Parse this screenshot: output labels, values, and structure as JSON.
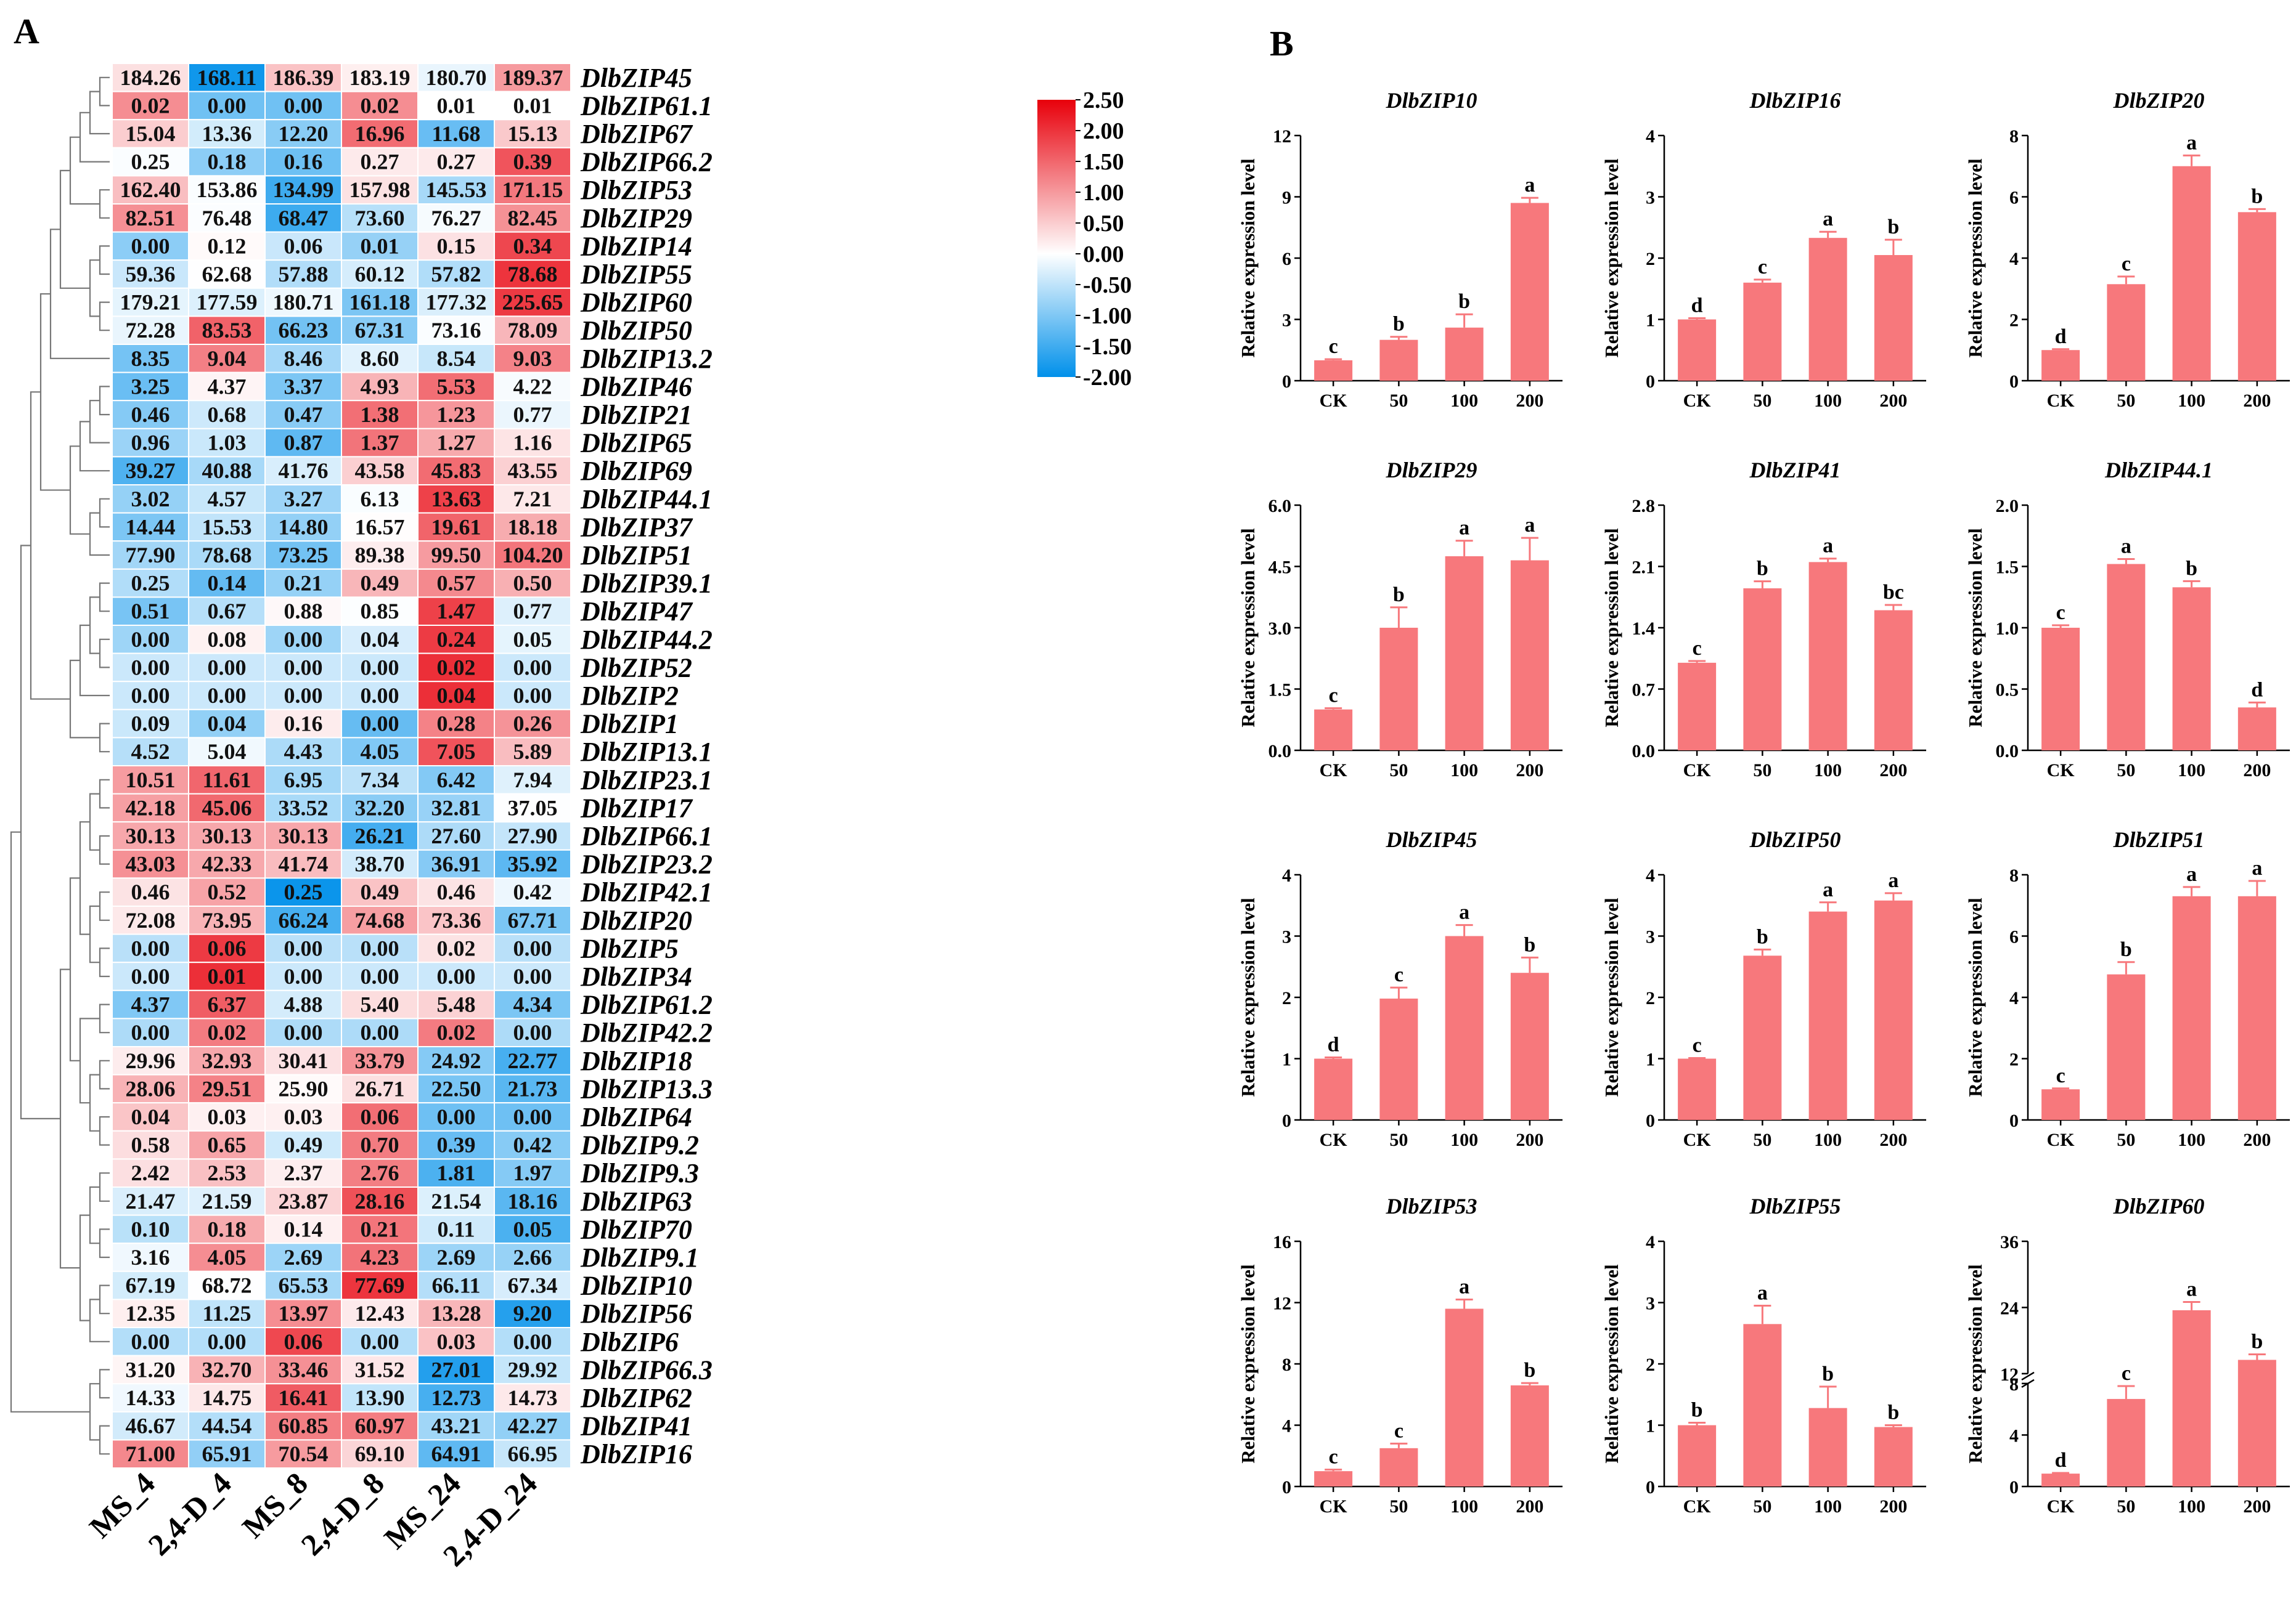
{
  "panel_a": {
    "label": "A",
    "columns": [
      "MS_4",
      "2,4-D_4",
      "MS_8",
      "2,4-D_8",
      "MS_24",
      "2,4-D_24"
    ],
    "colorbar": {
      "ticks": [
        "2.50",
        "2.00",
        "1.50",
        "1.00",
        "0.50",
        "0.00",
        "-0.50",
        "-1.00",
        "-1.50",
        "-2.00"
      ],
      "min": -2.0,
      "max": 2.5,
      "high_color": "#e8000b",
      "mid_color": "#ffffff",
      "low_color": "#0090ea"
    },
    "rows": [
      {
        "gene": "DlbZIP45",
        "values": [
          "184.26",
          "168.11",
          "186.39",
          "183.19",
          "180.70",
          "189.37"
        ]
      },
      {
        "gene": "DlbZIP61.1",
        "values": [
          "0.02",
          "0.00",
          "0.00",
          "0.02",
          "0.01",
          "0.01"
        ]
      },
      {
        "gene": "DlbZIP67",
        "values": [
          "15.04",
          "13.36",
          "12.20",
          "16.96",
          "11.68",
          "15.13"
        ]
      },
      {
        "gene": "DlbZIP66.2",
        "values": [
          "0.25",
          "0.18",
          "0.16",
          "0.27",
          "0.27",
          "0.39"
        ]
      },
      {
        "gene": "DlbZIP53",
        "values": [
          "162.40",
          "153.86",
          "134.99",
          "157.98",
          "145.53",
          "171.15"
        ]
      },
      {
        "gene": "DlbZIP29",
        "values": [
          "82.51",
          "76.48",
          "68.47",
          "73.60",
          "76.27",
          "82.45"
        ]
      },
      {
        "gene": "DlbZIP14",
        "values": [
          "0.00",
          "0.12",
          "0.06",
          "0.01",
          "0.15",
          "0.34"
        ]
      },
      {
        "gene": "DlbZIP55",
        "values": [
          "59.36",
          "62.68",
          "57.88",
          "60.12",
          "57.82",
          "78.68"
        ]
      },
      {
        "gene": "DlbZIP60",
        "values": [
          "179.21",
          "177.59",
          "180.71",
          "161.18",
          "177.32",
          "225.65"
        ]
      },
      {
        "gene": "DlbZIP50",
        "values": [
          "72.28",
          "83.53",
          "66.23",
          "67.31",
          "73.16",
          "78.09"
        ]
      },
      {
        "gene": "DlbZIP13.2",
        "values": [
          "8.35",
          "9.04",
          "8.46",
          "8.60",
          "8.54",
          "9.03"
        ]
      },
      {
        "gene": "DlbZIP46",
        "values": [
          "3.25",
          "4.37",
          "3.37",
          "4.93",
          "5.53",
          "4.22"
        ]
      },
      {
        "gene": "DlbZIP21",
        "values": [
          "0.46",
          "0.68",
          "0.47",
          "1.38",
          "1.23",
          "0.77"
        ]
      },
      {
        "gene": "DlbZIP65",
        "values": [
          "0.96",
          "1.03",
          "0.87",
          "1.37",
          "1.27",
          "1.16"
        ]
      },
      {
        "gene": "DlbZIP69",
        "values": [
          "39.27",
          "40.88",
          "41.76",
          "43.58",
          "45.83",
          "43.55"
        ]
      },
      {
        "gene": "DlbZIP44.1",
        "values": [
          "3.02",
          "4.57",
          "3.27",
          "6.13",
          "13.63",
          "7.21"
        ]
      },
      {
        "gene": "DlbZIP37",
        "values": [
          "14.44",
          "15.53",
          "14.80",
          "16.57",
          "19.61",
          "18.18"
        ]
      },
      {
        "gene": "DlbZIP51",
        "values": [
          "77.90",
          "78.68",
          "73.25",
          "89.38",
          "99.50",
          "104.20"
        ]
      },
      {
        "gene": "DlbZIP39.1",
        "values": [
          "0.25",
          "0.14",
          "0.21",
          "0.49",
          "0.57",
          "0.50"
        ]
      },
      {
        "gene": "DlbZIP47",
        "values": [
          "0.51",
          "0.67",
          "0.88",
          "0.85",
          "1.47",
          "0.77"
        ]
      },
      {
        "gene": "DlbZIP44.2",
        "values": [
          "0.00",
          "0.08",
          "0.00",
          "0.04",
          "0.24",
          "0.05"
        ]
      },
      {
        "gene": "DlbZIP52",
        "values": [
          "0.00",
          "0.00",
          "0.00",
          "0.00",
          "0.02",
          "0.00"
        ]
      },
      {
        "gene": "DlbZIP2",
        "values": [
          "0.00",
          "0.00",
          "0.00",
          "0.00",
          "0.04",
          "0.00"
        ]
      },
      {
        "gene": "DlbZIP1",
        "values": [
          "0.09",
          "0.04",
          "0.16",
          "0.00",
          "0.28",
          "0.26"
        ]
      },
      {
        "gene": "DlbZIP13.1",
        "values": [
          "4.52",
          "5.04",
          "4.43",
          "4.05",
          "7.05",
          "5.89"
        ]
      },
      {
        "gene": "DlbZIP23.1",
        "values": [
          "10.51",
          "11.61",
          "6.95",
          "7.34",
          "6.42",
          "7.94"
        ]
      },
      {
        "gene": "DlbZIP17",
        "values": [
          "42.18",
          "45.06",
          "33.52",
          "32.20",
          "32.81",
          "37.05"
        ]
      },
      {
        "gene": "DlbZIP66.1",
        "values": [
          "30.13",
          "30.13",
          "30.13",
          "26.21",
          "27.60",
          "27.90"
        ]
      },
      {
        "gene": "DlbZIP23.2",
        "values": [
          "43.03",
          "42.33",
          "41.74",
          "38.70",
          "36.91",
          "35.92"
        ]
      },
      {
        "gene": "DlbZIP42.1",
        "values": [
          "0.46",
          "0.52",
          "0.25",
          "0.49",
          "0.46",
          "0.42"
        ]
      },
      {
        "gene": "DlbZIP20",
        "values": [
          "72.08",
          "73.95",
          "66.24",
          "74.68",
          "73.36",
          "67.71"
        ]
      },
      {
        "gene": "DlbZIP5",
        "values": [
          "0.00",
          "0.06",
          "0.00",
          "0.00",
          "0.02",
          "0.00"
        ]
      },
      {
        "gene": "DlbZIP34",
        "values": [
          "0.00",
          "0.01",
          "0.00",
          "0.00",
          "0.00",
          "0.00"
        ]
      },
      {
        "gene": "DlbZIP61.2",
        "values": [
          "4.37",
          "6.37",
          "4.88",
          "5.40",
          "5.48",
          "4.34"
        ]
      },
      {
        "gene": "DlbZIP42.2",
        "values": [
          "0.00",
          "0.02",
          "0.00",
          "0.00",
          "0.02",
          "0.00"
        ]
      },
      {
        "gene": "DlbZIP18",
        "values": [
          "29.96",
          "32.93",
          "30.41",
          "33.79",
          "24.92",
          "22.77"
        ]
      },
      {
        "gene": "DlbZIP13.3",
        "values": [
          "28.06",
          "29.51",
          "25.90",
          "26.71",
          "22.50",
          "21.73"
        ]
      },
      {
        "gene": "DlbZIP64",
        "values": [
          "0.04",
          "0.03",
          "0.03",
          "0.06",
          "0.00",
          "0.00"
        ]
      },
      {
        "gene": "DlbZIP9.2",
        "values": [
          "0.58",
          "0.65",
          "0.49",
          "0.70",
          "0.39",
          "0.42"
        ]
      },
      {
        "gene": "DlbZIP9.3",
        "values": [
          "2.42",
          "2.53",
          "2.37",
          "2.76",
          "1.81",
          "1.97"
        ]
      },
      {
        "gene": "DlbZIP63",
        "values": [
          "21.47",
          "21.59",
          "23.87",
          "28.16",
          "21.54",
          "18.16"
        ]
      },
      {
        "gene": "DlbZIP70",
        "values": [
          "0.10",
          "0.18",
          "0.14",
          "0.21",
          "0.11",
          "0.05"
        ]
      },
      {
        "gene": "DlbZIP9.1",
        "values": [
          "3.16",
          "4.05",
          "2.69",
          "4.23",
          "2.69",
          "2.66"
        ]
      },
      {
        "gene": "DlbZIP10",
        "values": [
          "67.19",
          "68.72",
          "65.53",
          "77.69",
          "66.11",
          "67.34"
        ]
      },
      {
        "gene": "DlbZIP56",
        "values": [
          "12.35",
          "11.25",
          "13.97",
          "12.43",
          "13.28",
          "9.20"
        ]
      },
      {
        "gene": "DlbZIP6",
        "values": [
          "0.00",
          "0.00",
          "0.06",
          "0.00",
          "0.03",
          "0.00"
        ]
      },
      {
        "gene": "DlbZIP66.3",
        "values": [
          "31.20",
          "32.70",
          "33.46",
          "31.52",
          "27.01",
          "29.92"
        ]
      },
      {
        "gene": "DlbZIP62",
        "values": [
          "14.33",
          "14.75",
          "16.41",
          "13.90",
          "12.73",
          "14.73"
        ]
      },
      {
        "gene": "DlbZIP41",
        "values": [
          "46.67",
          "44.54",
          "60.85",
          "60.97",
          "43.21",
          "42.27"
        ]
      },
      {
        "gene": "DlbZIP16",
        "values": [
          "71.00",
          "65.91",
          "70.54",
          "69.10",
          "64.91",
          "66.95"
        ]
      }
    ]
  },
  "panel_b": {
    "label": "B",
    "ylabel": "Relative expression level",
    "bar_color": "#f7787c"
  },
  "chart_data": [
    {
      "type": "heatmap",
      "title": "",
      "x": [
        "MS_4",
        "2,4-D_4",
        "MS_8",
        "2,4-D_8",
        "MS_24",
        "2,4-D_24"
      ],
      "y_source": "panel_a.rows",
      "value_range": [
        -2.0,
        2.5
      ]
    },
    {
      "type": "bar",
      "title": "DlbZIP10",
      "categories": [
        "CK",
        "50",
        "100",
        "200"
      ],
      "values": [
        1.0,
        2.0,
        2.6,
        8.7
      ],
      "errors": [
        0.05,
        0.15,
        0.65,
        0.25
      ],
      "letters": [
        "c",
        "b",
        "b",
        "a"
      ],
      "ylim": [
        0,
        12
      ],
      "yticks": [
        "0",
        "3",
        "6",
        "9",
        "12"
      ],
      "xlabel": "",
      "ylabel": "Relative expression level"
    },
    {
      "type": "bar",
      "title": "DlbZIP16",
      "categories": [
        "CK",
        "50",
        "100",
        "200"
      ],
      "values": [
        1.0,
        1.6,
        2.33,
        2.05
      ],
      "errors": [
        0.02,
        0.05,
        0.1,
        0.25
      ],
      "letters": [
        "d",
        "c",
        "a",
        "b"
      ],
      "ylim": [
        0,
        4
      ],
      "yticks": [
        "0",
        "1",
        "2",
        "3",
        "4"
      ],
      "xlabel": "",
      "ylabel": "Relative expression level"
    },
    {
      "type": "bar",
      "title": "DlbZIP20",
      "categories": [
        "CK",
        "50",
        "100",
        "200"
      ],
      "values": [
        1.0,
        3.15,
        7.0,
        5.5
      ],
      "errors": [
        0.03,
        0.25,
        0.35,
        0.1
      ],
      "letters": [
        "d",
        "c",
        "a",
        "b"
      ],
      "ylim": [
        0,
        8
      ],
      "yticks": [
        "0",
        "2",
        "4",
        "6",
        "8"
      ],
      "xlabel": "",
      "ylabel": "Relative expression level"
    },
    {
      "type": "bar",
      "title": "DlbZIP29",
      "categories": [
        "CK",
        "50",
        "100",
        "200"
      ],
      "values": [
        1.0,
        3.0,
        4.75,
        4.65
      ],
      "errors": [
        0.03,
        0.5,
        0.38,
        0.55
      ],
      "letters": [
        "c",
        "b",
        "a",
        "a"
      ],
      "ylim": [
        0,
        6
      ],
      "yticks": [
        "0.0",
        "1.5",
        "3.0",
        "4.5",
        "6.0"
      ],
      "xlabel": "",
      "ylabel": "Relative expression level"
    },
    {
      "type": "bar",
      "title": "DlbZIP41",
      "categories": [
        "CK",
        "50",
        "100",
        "200"
      ],
      "values": [
        1.0,
        1.85,
        2.15,
        1.6
      ],
      "errors": [
        0.02,
        0.08,
        0.04,
        0.06
      ],
      "letters": [
        "c",
        "b",
        "a",
        "bc"
      ],
      "ylim": [
        0,
        2.8
      ],
      "yticks": [
        "0.0",
        "0.7",
        "1.4",
        "2.1",
        "2.8"
      ],
      "xlabel": "",
      "ylabel": "Relative expression level"
    },
    {
      "type": "bar",
      "title": "DlbZIP44.1",
      "categories": [
        "CK",
        "50",
        "100",
        "200"
      ],
      "values": [
        1.0,
        1.52,
        1.33,
        0.35
      ],
      "errors": [
        0.02,
        0.04,
        0.05,
        0.04
      ],
      "letters": [
        "c",
        "a",
        "b",
        "d"
      ],
      "ylim": [
        0,
        2
      ],
      "yticks": [
        "0.0",
        "0.5",
        "1.0",
        "1.5",
        "2.0"
      ],
      "xlabel": "",
      "ylabel": "Relative expression level"
    },
    {
      "type": "bar",
      "title": "DlbZIP45",
      "categories": [
        "CK",
        "50",
        "100",
        "200"
      ],
      "values": [
        1.0,
        1.98,
        3.0,
        2.4
      ],
      "errors": [
        0.02,
        0.18,
        0.18,
        0.25
      ],
      "letters": [
        "d",
        "c",
        "a",
        "b"
      ],
      "ylim": [
        0,
        4
      ],
      "yticks": [
        "0",
        "1",
        "2",
        "3",
        "4"
      ],
      "xlabel": "",
      "ylabel": "Relative expression level"
    },
    {
      "type": "bar",
      "title": "DlbZIP50",
      "categories": [
        "CK",
        "50",
        "100",
        "200"
      ],
      "values": [
        1.0,
        2.68,
        3.4,
        3.58
      ],
      "errors": [
        0.01,
        0.1,
        0.15,
        0.12
      ],
      "letters": [
        "c",
        "b",
        "a",
        "a"
      ],
      "ylim": [
        0,
        4
      ],
      "yticks": [
        "0",
        "1",
        "2",
        "3",
        "4"
      ],
      "xlabel": "",
      "ylabel": "Relative expression level"
    },
    {
      "type": "bar",
      "title": "DlbZIP51",
      "categories": [
        "CK",
        "50",
        "100",
        "200"
      ],
      "values": [
        1.0,
        4.75,
        7.3,
        7.3
      ],
      "errors": [
        0.03,
        0.4,
        0.3,
        0.5
      ],
      "letters": [
        "c",
        "b",
        "a",
        "a"
      ],
      "ylim": [
        0,
        8
      ],
      "yticks": [
        "0",
        "2",
        "4",
        "6",
        "8"
      ],
      "xlabel": "",
      "ylabel": "Relative expression level"
    },
    {
      "type": "bar",
      "title": "DlbZIP53",
      "categories": [
        "CK",
        "50",
        "100",
        "200"
      ],
      "values": [
        1.0,
        2.5,
        11.6,
        6.6
      ],
      "errors": [
        0.1,
        0.3,
        0.6,
        0.15
      ],
      "letters": [
        "c",
        "c",
        "a",
        "b"
      ],
      "ylim": [
        0,
        16
      ],
      "yticks": [
        "0",
        "4",
        "8",
        "12",
        "16"
      ],
      "xlabel": "",
      "ylabel": "Relative expression level"
    },
    {
      "type": "bar",
      "title": "DlbZIP55",
      "categories": [
        "CK",
        "50",
        "100",
        "200"
      ],
      "values": [
        1.0,
        2.65,
        1.28,
        0.97
      ],
      "errors": [
        0.04,
        0.3,
        0.35,
        0.03
      ],
      "letters": [
        "b",
        "a",
        "b",
        "b"
      ],
      "ylim": [
        0,
        4
      ],
      "yticks": [
        "0",
        "1",
        "2",
        "3",
        "4"
      ],
      "xlabel": "",
      "ylabel": "Relative expression level"
    },
    {
      "type": "bar",
      "title": "DlbZIP60",
      "categories": [
        "CK",
        "50",
        "100",
        "200"
      ],
      "values": [
        1.0,
        6.8,
        23.5,
        14.5
      ],
      "errors": [
        0.05,
        1.0,
        1.5,
        1.0
      ],
      "letters": [
        "d",
        "c",
        "a",
        "b"
      ],
      "ylim": [
        0,
        36
      ],
      "axis_break": [
        8,
        12
      ],
      "yticks": [
        "0",
        "4",
        "8",
        "12",
        "24",
        "36"
      ],
      "xlabel": "",
      "ylabel": "Relative expression level"
    }
  ]
}
